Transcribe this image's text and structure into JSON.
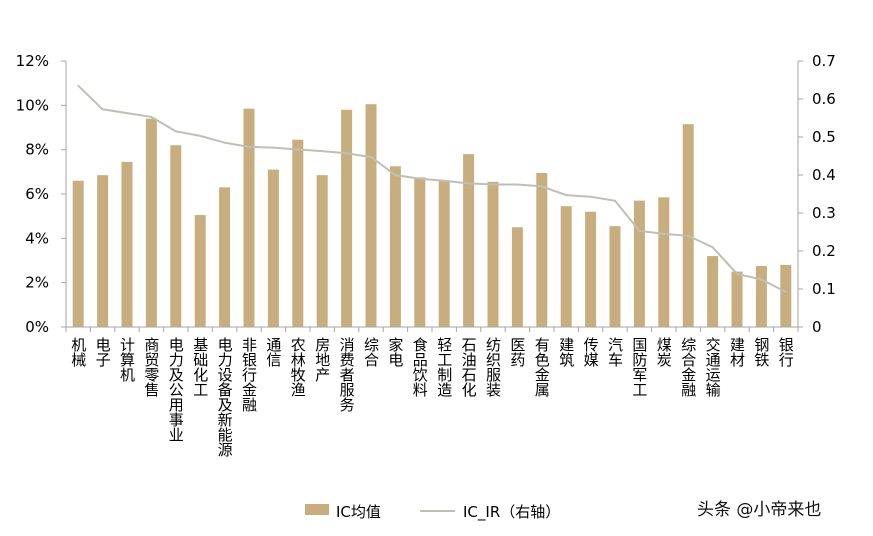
{
  "chart_data": {
    "type": "bar+line",
    "categories": [
      "机械",
      "电子",
      "计算机",
      "商贸零售",
      "电力及公用事业",
      "基础化工",
      "电力设备及新能源",
      "非银行金融",
      "通信",
      "农林牧渔",
      "房地产",
      "消费者服务",
      "综合",
      "家电",
      "食品饮料",
      "轻工制造",
      "石油石化",
      "纺织服装",
      "医药",
      "有色金属",
      "建筑",
      "传媒",
      "汽车",
      "国防军工",
      "煤炭",
      "综合金融",
      "交通运输",
      "建材",
      "钢铁",
      "银行"
    ],
    "series": [
      {
        "name": "IC均值",
        "type": "bar",
        "axis": "left",
        "color": "#c8ae7e",
        "values": [
          6.6,
          6.85,
          7.45,
          9.4,
          8.2,
          5.05,
          6.3,
          9.85,
          7.1,
          8.45,
          6.85,
          9.8,
          10.05,
          7.25,
          6.75,
          6.6,
          7.8,
          6.55,
          4.5,
          6.95,
          5.45,
          5.2,
          4.55,
          5.7,
          5.85,
          9.15,
          3.2,
          2.5,
          2.75,
          2.8
        ]
      },
      {
        "name": "IC_IR（右轴）",
        "type": "line",
        "axis": "right",
        "color": "#bfbfb5",
        "values": [
          0.635,
          0.573,
          0.563,
          0.553,
          0.515,
          0.503,
          0.485,
          0.474,
          0.472,
          0.467,
          0.463,
          0.457,
          0.447,
          0.4,
          0.39,
          0.385,
          0.378,
          0.375,
          0.375,
          0.37,
          0.347,
          0.343,
          0.332,
          0.253,
          0.245,
          0.24,
          0.21,
          0.14,
          0.125,
          0.092
        ]
      }
    ],
    "left_axis": {
      "min": 0,
      "max": 12,
      "step": 2,
      "labels": [
        "0%",
        "2%",
        "4%",
        "6%",
        "8%",
        "10%",
        "12%"
      ]
    },
    "right_axis": {
      "min": 0,
      "max": 0.7,
      "step": 0.1,
      "labels": [
        "0",
        "0.1",
        "0.2",
        "0.3",
        "0.4",
        "0.5",
        "0.6",
        "0.7"
      ]
    },
    "legend": {
      "position": "bottom",
      "entries": [
        "IC均值",
        "IC_IR（右轴）"
      ]
    },
    "grid": false
  },
  "watermark": "头条 @小帝来也"
}
